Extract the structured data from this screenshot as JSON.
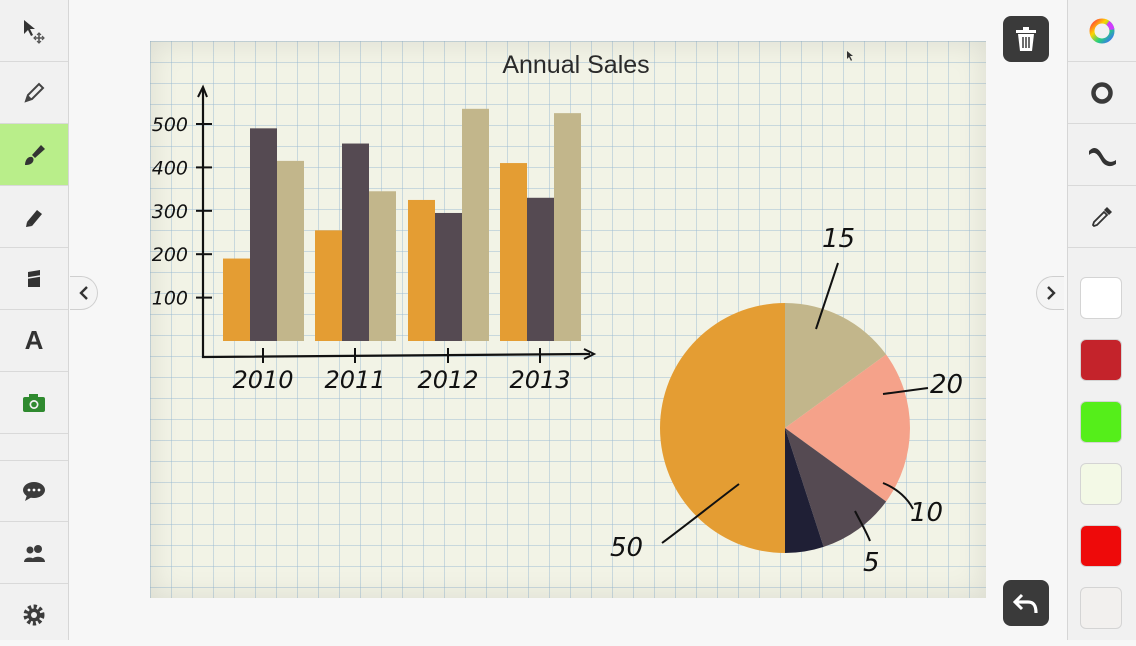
{
  "left_toolbar": {
    "tools": [
      {
        "name": "select-move",
        "icon": "select-move-icon"
      },
      {
        "name": "pencil",
        "icon": "pencil-icon"
      },
      {
        "name": "brush",
        "icon": "brush-icon",
        "active": true
      },
      {
        "name": "marker",
        "icon": "marker-icon"
      },
      {
        "name": "eraser",
        "icon": "eraser-icon"
      },
      {
        "name": "text",
        "icon": "text-icon",
        "label": "A"
      },
      {
        "name": "camera",
        "icon": "camera-icon"
      },
      {
        "name": "chat",
        "icon": "chat-icon"
      },
      {
        "name": "users",
        "icon": "users-icon"
      },
      {
        "name": "settings",
        "icon": "gear-icon"
      }
    ],
    "active_color": "#b9ee8a"
  },
  "right_toolbar": {
    "tools": [
      {
        "name": "color-wheel",
        "icon": "color-wheel-icon"
      },
      {
        "name": "brush-size",
        "icon": "ring-icon"
      },
      {
        "name": "stroke-style",
        "icon": "wave-stroke-icon"
      },
      {
        "name": "eyedropper",
        "icon": "eyedropper-icon"
      }
    ],
    "swatches": [
      "#ffffff",
      "#c4232b",
      "#55ee1a",
      "#f3f9e6",
      "#ee0a0a",
      "#f2f0ee"
    ]
  },
  "canvas": {
    "buttons": {
      "delete": "trash-icon",
      "undo": "undo-icon"
    }
  },
  "chart_data": [
    {
      "type": "bar",
      "title": "Annual Sales",
      "categories": [
        "2010",
        "2011",
        "2012",
        "2013"
      ],
      "series": [
        {
          "values": [
            190,
            255,
            325,
            410
          ],
          "color": "#e49d33"
        },
        {
          "values": [
            490,
            455,
            295,
            330
          ],
          "color": "#554a52"
        },
        {
          "values": [
            415,
            345,
            535,
            525
          ],
          "color": "#c2b68b"
        }
      ],
      "yticks": [
        100,
        200,
        300,
        400,
        500
      ],
      "ylim": [
        0,
        560
      ]
    },
    {
      "type": "pie",
      "slices": [
        {
          "label": "15",
          "value": 15,
          "color": "#c2b68b"
        },
        {
          "label": "20",
          "value": 20,
          "color": "#f5a28a"
        },
        {
          "label": "10",
          "value": 10,
          "color": "#554a52"
        },
        {
          "label": "5",
          "value": 5,
          "color": "#1f1f35"
        },
        {
          "label": "50",
          "value": 50,
          "color": "#e49d33"
        }
      ]
    }
  ]
}
